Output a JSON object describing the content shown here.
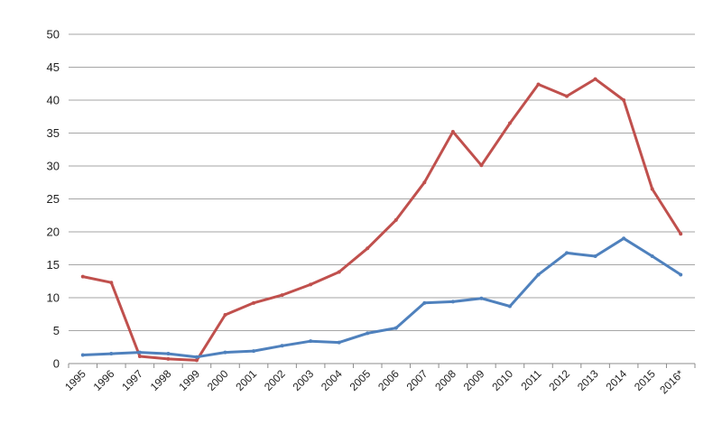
{
  "chart_data": {
    "type": "line",
    "title": "",
    "xlabel": "",
    "ylabel": "",
    "categories": [
      "1995",
      "1996",
      "1997",
      "1998",
      "1999",
      "2000",
      "2001",
      "2002",
      "2003",
      "2004",
      "2005",
      "2006",
      "2007",
      "2008",
      "2009",
      "2010",
      "2011",
      "2012",
      "2013",
      "2014",
      "2015",
      "2016*"
    ],
    "ylim": [
      0,
      50
    ],
    "yticks": [
      "0",
      "5",
      "10",
      "15",
      "20",
      "25",
      "30",
      "35",
      "40",
      "45",
      "50"
    ],
    "grid": true,
    "legend": "none",
    "series": [
      {
        "color": "#c0504d",
        "values": [
          13.2,
          12.3,
          1.1,
          0.7,
          0.5,
          7.4,
          9.2,
          10.4,
          12.0,
          13.9,
          17.5,
          21.8,
          27.5,
          35.2,
          30.1,
          36.5,
          42.4,
          40.6,
          43.2,
          40.0,
          26.5,
          19.7
        ]
      },
      {
        "color": "#4f81bd",
        "values": [
          1.3,
          1.5,
          1.7,
          1.5,
          1.0,
          1.7,
          1.9,
          2.7,
          3.4,
          3.2,
          4.6,
          5.4,
          9.2,
          9.4,
          9.9,
          8.7,
          13.5,
          16.8,
          16.3,
          19.0,
          16.3,
          13.5
        ]
      }
    ]
  }
}
